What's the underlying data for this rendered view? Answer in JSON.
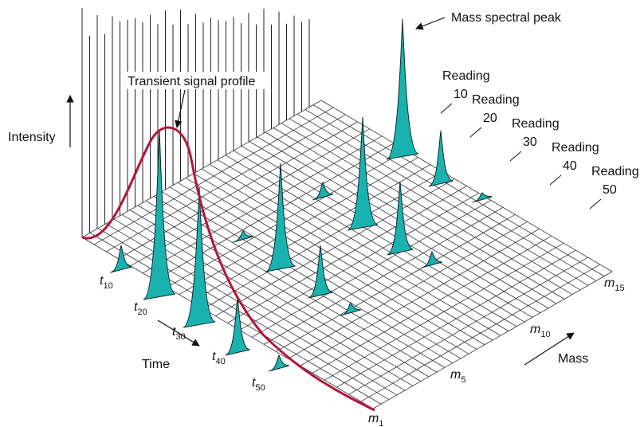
{
  "annotations": {
    "peak": "Mass spectral peak",
    "profile": "Transient signal profile"
  },
  "axes": {
    "intensity": "Intensity",
    "time": "Time",
    "mass": "Mass"
  },
  "readings": [
    {
      "label": "Reading",
      "number": "10"
    },
    {
      "label": "Reading",
      "number": "20"
    },
    {
      "label": "Reading",
      "number": "30"
    },
    {
      "label": "Reading",
      "number": "40"
    },
    {
      "label": "Reading",
      "number": "50"
    }
  ],
  "time_labels": [
    {
      "symbol": "t",
      "subscript": "10"
    },
    {
      "symbol": "t",
      "subscript": "20"
    },
    {
      "symbol": "t",
      "subscript": "30"
    },
    {
      "symbol": "t",
      "subscript": "40"
    },
    {
      "symbol": "t",
      "subscript": "50"
    }
  ],
  "mass_labels": [
    {
      "symbol": "m",
      "subscript": "1"
    },
    {
      "symbol": "m",
      "subscript": "5"
    },
    {
      "symbol": "m",
      "subscript": "10"
    },
    {
      "symbol": "m",
      "subscript": "15"
    }
  ]
}
